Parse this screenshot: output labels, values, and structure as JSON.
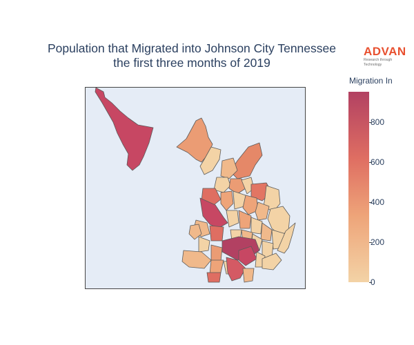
{
  "title": {
    "line1": "Population that Migrated into Johnson City Tennessee",
    "line2": "the first three months of 2019"
  },
  "logo": {
    "word": "ADVAN",
    "tagline": "Research through Technology"
  },
  "colorbar": {
    "title": "Migration In",
    "range": [
      0,
      950
    ],
    "ticks": [
      "0",
      "200",
      "400",
      "600",
      "800"
    ],
    "colors": [
      "#f3d3a6",
      "#eea479",
      "#df6e62",
      "#b24162"
    ]
  },
  "map": {
    "background": "#e5ecf6",
    "border_color": "#444444"
  }
}
